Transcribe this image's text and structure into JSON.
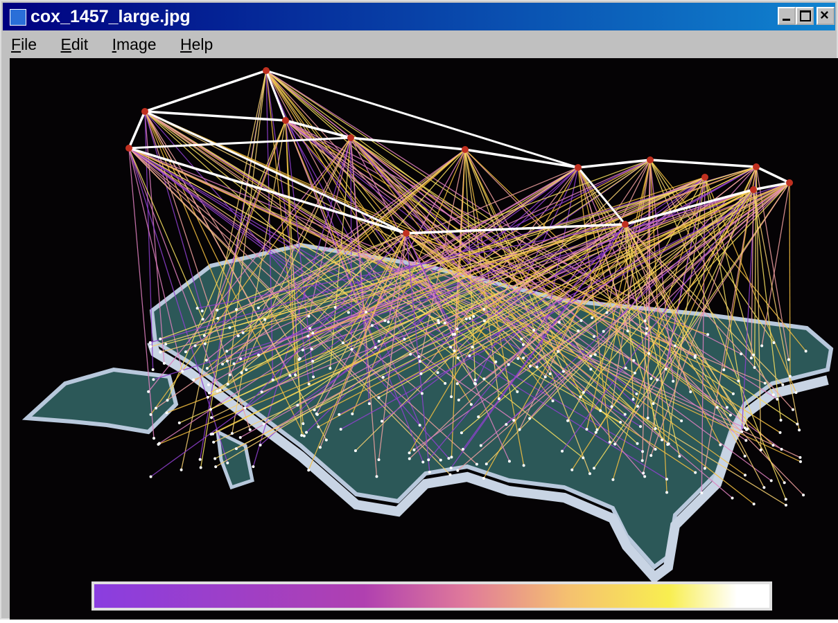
{
  "window": {
    "title": "cox_1457_large.jpg"
  },
  "menu": [
    "File",
    "Edit",
    "Image",
    "Help"
  ]
}
